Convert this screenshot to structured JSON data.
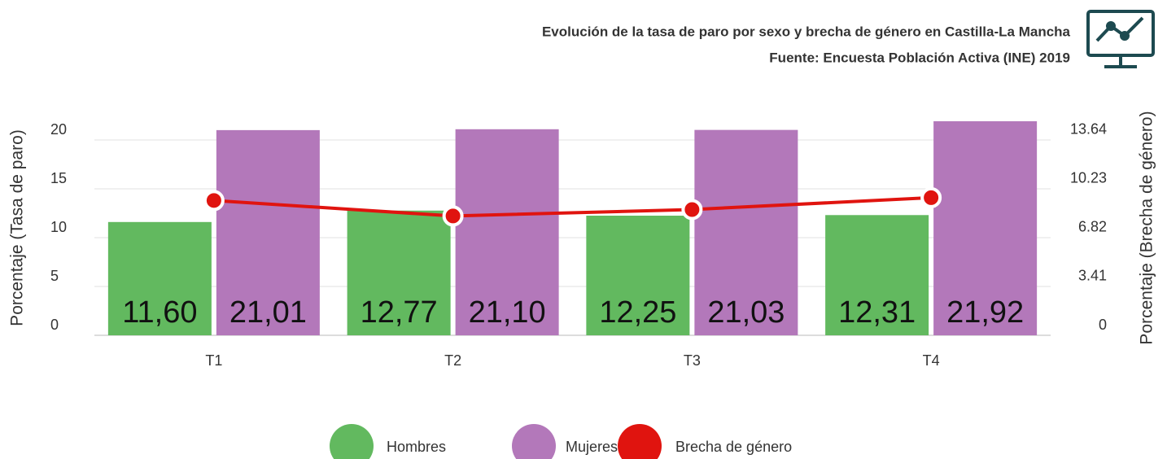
{
  "chart_data": {
    "type": "bar",
    "title": "Evolución de la tasa de paro por sexo y brecha de género en Castilla-La Mancha",
    "subtitle": "Fuente: Encuesta Población Activa (INE) 2019",
    "y_label": "Porcentaje (Tasa de paro)",
    "y2_label": "Porcentaje (Brecha de género)",
    "categories": [
      "T1",
      "T2",
      "T3",
      "T4"
    ],
    "series": [
      {
        "name": "Hombres",
        "color": "#62b95f",
        "type": "bar",
        "values": [
          11.6,
          12.77,
          12.25,
          12.31
        ],
        "value_labels": [
          "11,60",
          "12,77",
          "12,25",
          "12,31"
        ]
      },
      {
        "name": "Mujeres",
        "color": "#b378ba",
        "type": "bar",
        "values": [
          21.01,
          21.1,
          21.03,
          21.92
        ],
        "value_labels": [
          "21,01",
          "21,10",
          "21,03",
          "21,92"
        ]
      },
      {
        "name": "Brecha de género",
        "color": "#e0140f",
        "type": "line",
        "axis": "y2",
        "values": [
          9.41,
          8.33,
          8.78,
          9.61
        ]
      }
    ],
    "ylim": [
      0,
      22
    ],
    "yticks": [
      0,
      5,
      10,
      15,
      20
    ],
    "y2lim": [
      0,
      15.0
    ],
    "y2ticks": [
      0,
      3.41,
      6.82,
      10.23,
      13.64
    ],
    "grid": true,
    "legend": "bottom"
  }
}
